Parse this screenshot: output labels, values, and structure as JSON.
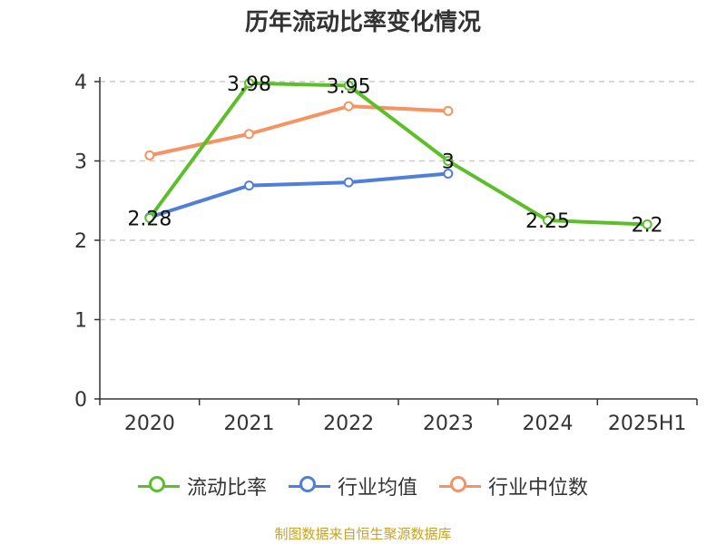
{
  "chart_data": {
    "type": "line",
    "title": "历年流动比率变化情况",
    "categories": [
      "2020",
      "2021",
      "2022",
      "2023",
      "2024",
      "2025H1"
    ],
    "ylim": [
      0,
      4
    ],
    "yticks": [
      "0",
      "1",
      "2",
      "3",
      "4"
    ],
    "grid": true,
    "legend_position": "bottom",
    "series": [
      {
        "name": "流动比率",
        "color": "#5cbf2a",
        "values": [
          2.28,
          3.98,
          3.95,
          3.0,
          2.25,
          2.2
        ],
        "labels": [
          "2.28",
          "3.98",
          "3.95",
          "3",
          "2.25",
          "2.2"
        ]
      },
      {
        "name": "行业均值",
        "color": "#4f7fd8",
        "values": [
          2.29,
          2.69,
          2.73,
          2.84,
          null,
          null
        ]
      },
      {
        "name": "行业中位数",
        "color": "#f59362",
        "values": [
          3.07,
          3.34,
          3.69,
          3.63,
          null,
          null
        ]
      }
    ]
  },
  "footer": {
    "source": "制图数据来自恒生聚源数据库"
  }
}
